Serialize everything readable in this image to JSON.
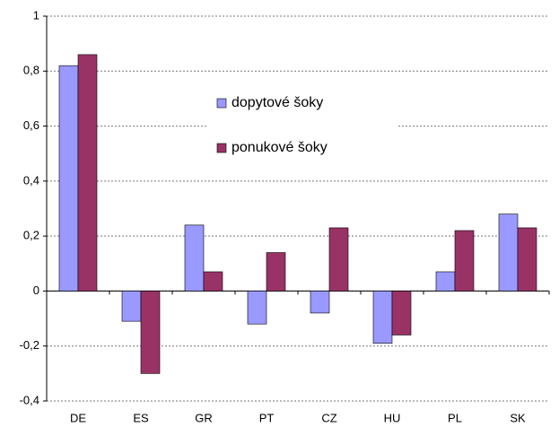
{
  "chart_data": {
    "type": "bar",
    "categories": [
      "DE",
      "ES",
      "GR",
      "PT",
      "CZ",
      "HU",
      "PL",
      "SK"
    ],
    "series": [
      {
        "name": "dopytové šoky",
        "color": "#9999ff",
        "values": [
          0.82,
          -0.11,
          0.24,
          -0.12,
          -0.08,
          -0.19,
          0.07,
          0.28
        ]
      },
      {
        "name": "ponukové šoky",
        "color": "#993366",
        "values": [
          0.86,
          -0.3,
          0.07,
          0.14,
          0.23,
          -0.16,
          0.22,
          0.23
        ]
      }
    ],
    "ylim": [
      -0.4,
      1
    ],
    "yticks": [
      {
        "value": -0.4,
        "label": "-0,4"
      },
      {
        "value": -0.2,
        "label": "-0,2"
      },
      0,
      {
        "value": 0.2,
        "label": "0,2"
      },
      {
        "value": 0.4,
        "label": "0,4"
      },
      {
        "value": 0.6,
        "label": "0,6"
      },
      {
        "value": 0.8,
        "label": "0,8"
      },
      1
    ],
    "grid": true,
    "legend": "upper center"
  }
}
